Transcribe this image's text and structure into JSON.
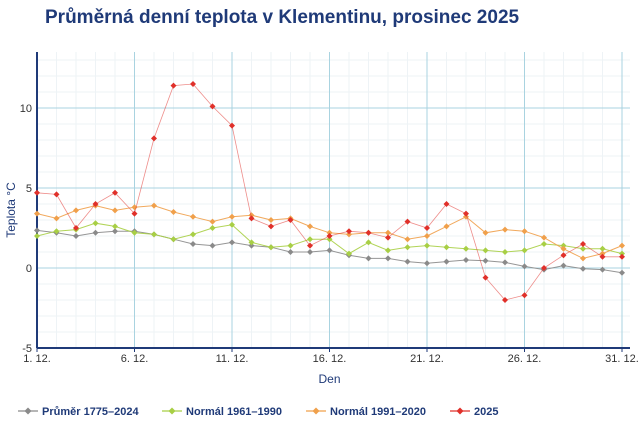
{
  "chart_data": {
    "type": "line",
    "title": "Průměrná denní teplota v Klementinu, prosinec 2025",
    "xlabel": "Den",
    "ylabel": "Teplota  °C",
    "x": [
      1,
      2,
      3,
      4,
      5,
      6,
      7,
      8,
      9,
      10,
      11,
      12,
      13,
      14,
      15,
      16,
      17,
      18,
      19,
      20,
      21,
      22,
      23,
      24,
      25,
      26,
      27,
      28,
      29,
      30,
      31
    ],
    "xticks": [
      1,
      6,
      11,
      16,
      21,
      26,
      31
    ],
    "xtick_labels": [
      "1. 12.",
      "6. 12.",
      "11. 12.",
      "16. 12.",
      "21. 12.",
      "26. 12.",
      "31. 12."
    ],
    "yticks": [
      -5,
      0,
      5,
      10
    ],
    "ylim": [
      -5,
      13.5
    ],
    "xlim": [
      1,
      31
    ],
    "grid": true,
    "legend": "bottom",
    "series": [
      {
        "name": "Průměr 1775–2024",
        "color": "#8a8a8a",
        "values": [
          2.35,
          2.2,
          2.0,
          2.2,
          2.3,
          2.3,
          2.1,
          1.8,
          1.5,
          1.4,
          1.6,
          1.4,
          1.3,
          1.0,
          1.0,
          1.1,
          0.8,
          0.6,
          0.6,
          0.4,
          0.3,
          0.4,
          0.5,
          0.45,
          0.35,
          0.1,
          -0.1,
          0.15,
          -0.05,
          -0.1,
          -0.3
        ]
      },
      {
        "name": "Normál 1961–1990",
        "color": "#a8cf45",
        "values": [
          2.0,
          2.3,
          2.4,
          2.8,
          2.6,
          2.2,
          2.1,
          1.8,
          2.1,
          2.5,
          2.7,
          1.6,
          1.3,
          1.4,
          1.8,
          1.8,
          0.9,
          1.6,
          1.1,
          1.3,
          1.4,
          1.3,
          1.2,
          1.1,
          1.0,
          1.1,
          1.5,
          1.4,
          1.2,
          1.2,
          0.9
        ]
      },
      {
        "name": "Normál 1991–2020",
        "color": "#f0a04b",
        "values": [
          3.4,
          3.1,
          3.6,
          3.9,
          3.6,
          3.8,
          3.9,
          3.5,
          3.2,
          2.9,
          3.2,
          3.3,
          3.0,
          3.1,
          2.6,
          2.2,
          2.1,
          2.2,
          2.2,
          1.8,
          2.0,
          2.6,
          3.2,
          2.2,
          2.4,
          2.3,
          1.9,
          1.2,
          0.6,
          0.9,
          1.4
        ]
      },
      {
        "name": "2025",
        "color": "#e0302a",
        "values": [
          4.7,
          4.6,
          2.5,
          4.0,
          4.7,
          3.4,
          8.1,
          11.4,
          11.5,
          10.1,
          8.9,
          3.1,
          2.6,
          3.0,
          1.4,
          2.0,
          2.3,
          2.2,
          1.9,
          2.9,
          2.5,
          4.0,
          3.4,
          -0.6,
          -2.0,
          -1.7,
          0.0,
          0.8,
          1.5,
          0.7,
          0.7
        ]
      }
    ]
  }
}
